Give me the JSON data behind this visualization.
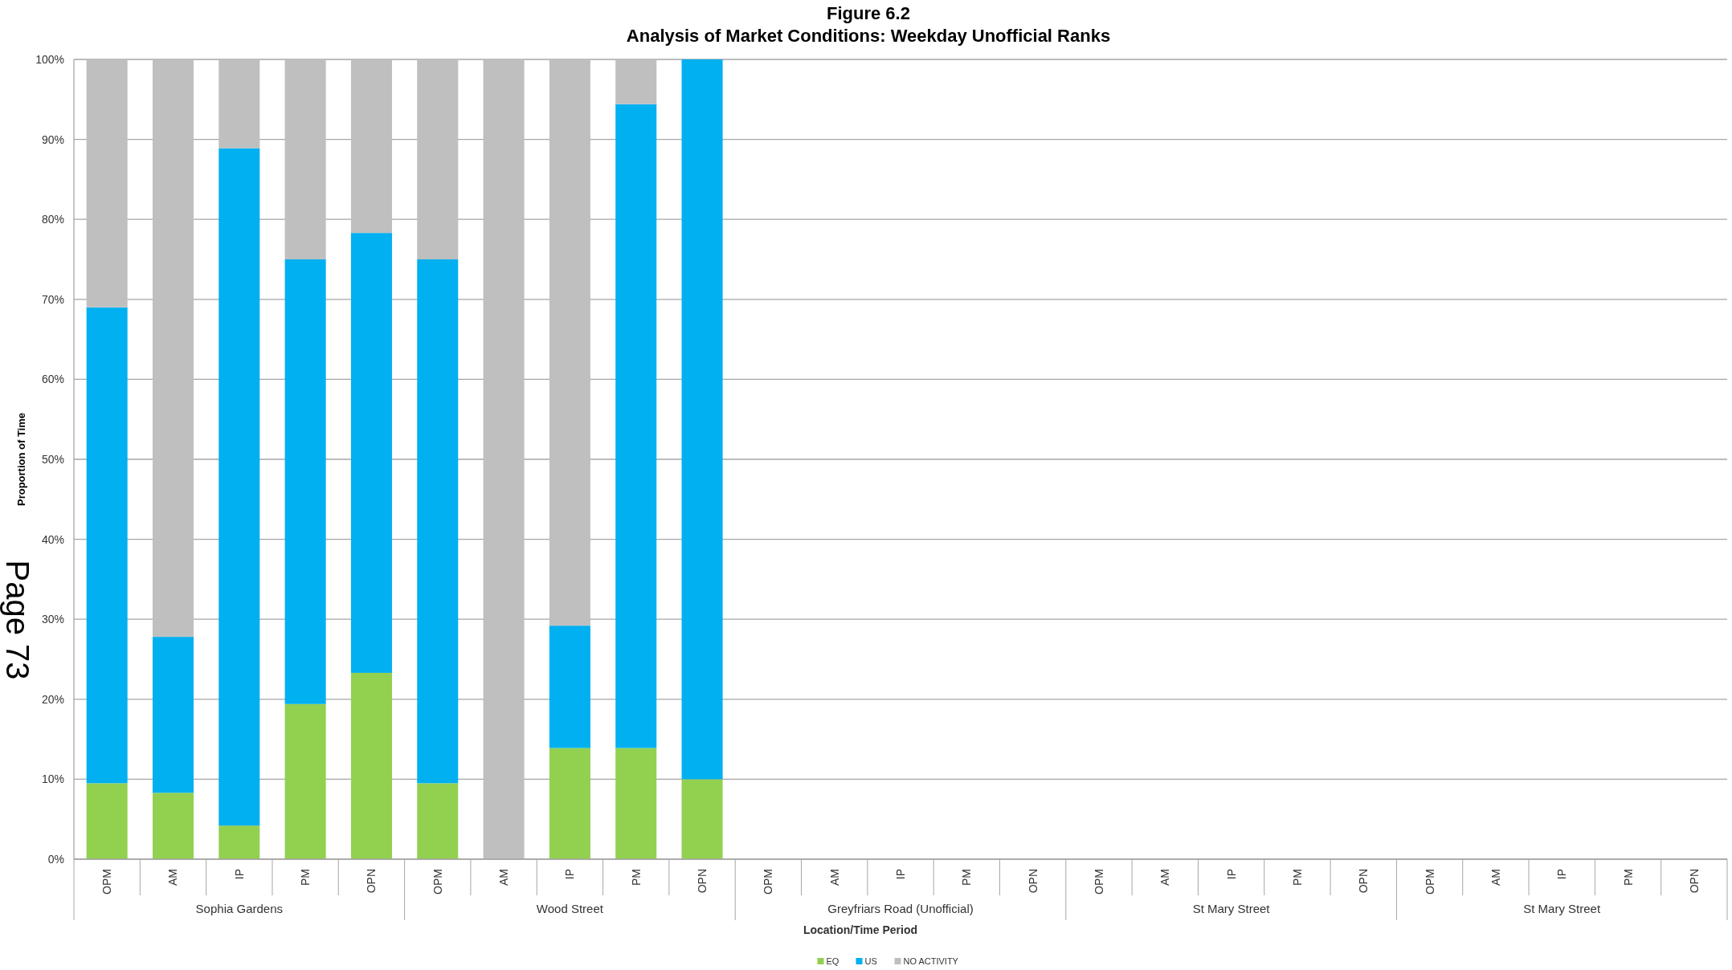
{
  "chart_data": {
    "type": "bar",
    "stacked": true,
    "title": "Figure 6.2",
    "subtitle": "Analysis of Market Conditions: Weekday Unofficial Ranks",
    "xlabel": "Location/Time Period",
    "ylabel": "Proportion of Time",
    "categories": [
      "OPM",
      "AM",
      "IP",
      "PM",
      "OPN",
      "OPM",
      "AM",
      "IP",
      "PM",
      "OPN",
      "OPM",
      "AM",
      "IP",
      "PM",
      "OPN",
      "OPM",
      "AM",
      "IP",
      "PM",
      "OPN",
      "OPM",
      "AM",
      "IP",
      "PM",
      "OPN"
    ],
    "series": [
      {
        "name": "EQ",
        "color": "#92d050",
        "values": [
          9.5,
          8.3,
          4.2,
          19.4,
          23.3,
          9.5,
          0,
          13.9,
          13.9,
          10,
          null,
          null,
          null,
          null,
          null,
          null,
          null,
          null,
          null,
          null,
          null,
          null,
          null,
          null,
          null
        ]
      },
      {
        "name": "US",
        "color": "#00b0f0",
        "values": [
          59.5,
          19.5,
          84.7,
          55.6,
          55,
          65.5,
          0,
          15.3,
          80.5,
          90,
          null,
          null,
          null,
          null,
          null,
          null,
          null,
          null,
          null,
          null,
          null,
          null,
          null,
          null,
          null
        ]
      },
      {
        "name": "NO ACTIVITY",
        "color": "#bfbfbf",
        "values": [
          31,
          72.2,
          11.1,
          25,
          21.7,
          25,
          100,
          70.8,
          5.6,
          0,
          null,
          null,
          null,
          null,
          null,
          null,
          null,
          null,
          null,
          null,
          null,
          null,
          null,
          null,
          null
        ]
      }
    ],
    "ylim": [
      0,
      100
    ],
    "yticks": [
      {
        "value": 0,
        "label": "0%"
      },
      {
        "value": 10,
        "label": "10%"
      },
      {
        "value": 20,
        "label": "20%"
      },
      {
        "value": 30,
        "label": "30%"
      },
      {
        "value": 40,
        "label": "40%"
      },
      {
        "value": 50,
        "label": "50%"
      },
      {
        "value": 60,
        "label": "60%"
      },
      {
        "value": 70,
        "label": "70%"
      },
      {
        "value": 80,
        "label": "80%"
      },
      {
        "value": 90,
        "label": "90%"
      },
      {
        "value": 100,
        "label": "100%"
      }
    ],
    "grid": "y",
    "legend": "bottom",
    "annotations": [
      "Page 73",
      "Sophia Gardens",
      "Wood Street",
      "Greyfriars Road (Unofficial)",
      "St Mary Street",
      "St Mary Street"
    ]
  }
}
